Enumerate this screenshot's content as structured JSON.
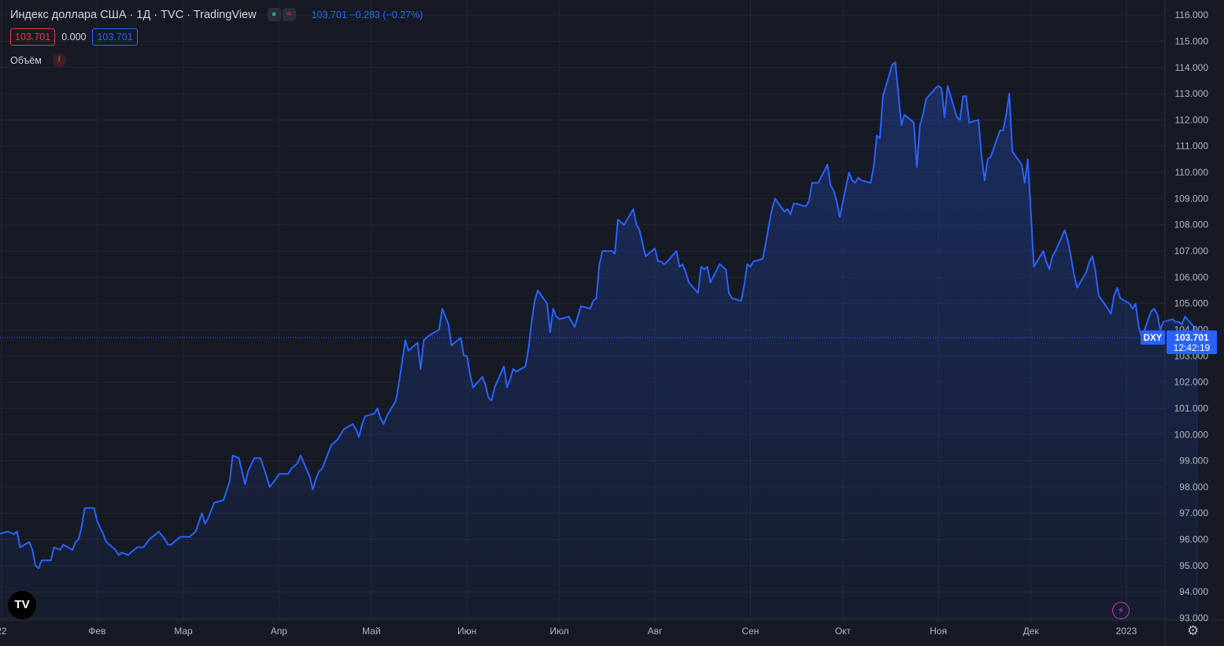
{
  "legend": {
    "title": "Индекс доллара США · 1Д · TVC · TradingView",
    "quote": "103.701  −0.283 (−0.27%)",
    "bid": "103.701",
    "spread": "0.000",
    "ask": "103.701",
    "volume_label": "Объём"
  },
  "price_tag": {
    "symbol": "DXY",
    "price": "103.701",
    "countdown": "12:42:19"
  },
  "colors": {
    "line": "#2962ff",
    "background": "#161a25",
    "grid": "#232733",
    "down": "#f23645",
    "up": "#26a69a"
  },
  "icons": {
    "logo": "tradingview-logo-icon",
    "bolt": "lightning-icon",
    "settings": "gear-icon"
  },
  "chart_data": {
    "type": "area",
    "symbol": "DXY",
    "ylim": [
      93,
      116
    ],
    "yticks": [
      93,
      94,
      95,
      96,
      97,
      98,
      99,
      100,
      101,
      102,
      103,
      104,
      105,
      106,
      107,
      108,
      109,
      110,
      111,
      112,
      113,
      114,
      115,
      116
    ],
    "ytick_labels": [
      "93.000",
      "94.000",
      "95.000",
      "96.000",
      "97.000",
      "98.000",
      "99.000",
      "100.000",
      "101.000",
      "102.000",
      "103.000",
      "104.000",
      "105.000",
      "106.000",
      "107.000",
      "108.000",
      "109.000",
      "110.000",
      "111.000",
      "112.000",
      "113.000",
      "114.000",
      "115.000",
      "116.000"
    ],
    "xticks": [
      "22",
      "Фев",
      "Мар",
      "Апр",
      "Май",
      "Июн",
      "Июл",
      "Авг",
      "Сен",
      "Окт",
      "Ноя",
      "Дек",
      "2023"
    ],
    "xtick_dates": [
      "2022-01-01",
      "2022-02-01",
      "2022-03-01",
      "2022-04-01",
      "2022-05-01",
      "2022-06-01",
      "2022-07-01",
      "2022-08-01",
      "2022-09-01",
      "2022-10-01",
      "2022-11-01",
      "2022-12-01",
      "2023-01-01"
    ],
    "last_value": 103.701,
    "points": [
      [
        "2021-12-31",
        96.2
      ],
      [
        "2022-01-03",
        96.3
      ],
      [
        "2022-01-05",
        96.2
      ],
      [
        "2022-01-06",
        96.3
      ],
      [
        "2022-01-07",
        95.7
      ],
      [
        "2022-01-10",
        95.9
      ],
      [
        "2022-01-11",
        95.6
      ],
      [
        "2022-01-12",
        95.0
      ],
      [
        "2022-01-13",
        94.9
      ],
      [
        "2022-01-14",
        95.2
      ],
      [
        "2022-01-17",
        95.2
      ],
      [
        "2022-01-18",
        95.7
      ],
      [
        "2022-01-20",
        95.6
      ],
      [
        "2022-01-21",
        95.8
      ],
      [
        "2022-01-24",
        95.6
      ],
      [
        "2022-01-25",
        95.9
      ],
      [
        "2022-01-26",
        96.0
      ],
      [
        "2022-01-27",
        96.5
      ],
      [
        "2022-01-28",
        97.2
      ],
      [
        "2022-01-31",
        97.2
      ],
      [
        "2022-02-01",
        96.7
      ],
      [
        "2022-02-03",
        96.2
      ],
      [
        "2022-02-04",
        95.9
      ],
      [
        "2022-02-07",
        95.6
      ],
      [
        "2022-02-08",
        95.4
      ],
      [
        "2022-02-09",
        95.5
      ],
      [
        "2022-02-11",
        95.4
      ],
      [
        "2022-02-14",
        95.7
      ],
      [
        "2022-02-16",
        95.7
      ],
      [
        "2022-02-18",
        96.0
      ],
      [
        "2022-02-21",
        96.3
      ],
      [
        "2022-02-23",
        96.0
      ],
      [
        "2022-02-24",
        95.8
      ],
      [
        "2022-02-25",
        95.8
      ],
      [
        "2022-02-28",
        96.1
      ],
      [
        "2022-03-01",
        96.1
      ],
      [
        "2022-03-03",
        96.1
      ],
      [
        "2022-03-04",
        96.2
      ],
      [
        "2022-03-05",
        96.3
      ],
      [
        "2022-03-07",
        97.0
      ],
      [
        "2022-03-08",
        96.6
      ],
      [
        "2022-03-09",
        96.8
      ],
      [
        "2022-03-11",
        97.4
      ],
      [
        "2022-03-14",
        97.5
      ],
      [
        "2022-03-16",
        98.2
      ],
      [
        "2022-03-17",
        99.2
      ],
      [
        "2022-03-19",
        99.1
      ],
      [
        "2022-03-21",
        98.1
      ],
      [
        "2022-03-22",
        98.6
      ],
      [
        "2022-03-24",
        99.1
      ],
      [
        "2022-03-26",
        99.1
      ],
      [
        "2022-03-28",
        98.4
      ],
      [
        "2022-03-29",
        98.0
      ],
      [
        "2022-03-31",
        98.3
      ],
      [
        "2022-04-01",
        98.5
      ],
      [
        "2022-04-04",
        98.5
      ],
      [
        "2022-04-05",
        98.7
      ],
      [
        "2022-04-06",
        98.8
      ],
      [
        "2022-04-07",
        98.9
      ],
      [
        "2022-04-08",
        99.2
      ],
      [
        "2022-04-11",
        98.4
      ],
      [
        "2022-04-12",
        97.9
      ],
      [
        "2022-04-13",
        98.3
      ],
      [
        "2022-04-14",
        98.6
      ],
      [
        "2022-04-15",
        98.7
      ],
      [
        "2022-04-18",
        99.6
      ],
      [
        "2022-04-19",
        99.7
      ],
      [
        "2022-04-20",
        99.8
      ],
      [
        "2022-04-21",
        100.0
      ],
      [
        "2022-04-22",
        100.2
      ],
      [
        "2022-04-25",
        100.4
      ],
      [
        "2022-04-26",
        100.2
      ],
      [
        "2022-04-27",
        99.9
      ],
      [
        "2022-04-28",
        100.4
      ],
      [
        "2022-04-29",
        100.7
      ],
      [
        "2022-05-02",
        100.8
      ],
      [
        "2022-05-03",
        101.0
      ],
      [
        "2022-05-04",
        100.6
      ],
      [
        "2022-05-05",
        100.4
      ],
      [
        "2022-05-06",
        100.7
      ],
      [
        "2022-05-09",
        101.3
      ],
      [
        "2022-05-10",
        102.0
      ],
      [
        "2022-05-11",
        102.8
      ],
      [
        "2022-05-12",
        103.6
      ],
      [
        "2022-05-13",
        103.2
      ],
      [
        "2022-05-16",
        103.5
      ],
      [
        "2022-05-17",
        102.5
      ],
      [
        "2022-05-18",
        103.6
      ],
      [
        "2022-05-19",
        103.7
      ],
      [
        "2022-05-20",
        103.8
      ],
      [
        "2022-05-23",
        104.0
      ],
      [
        "2022-05-24",
        104.8
      ],
      [
        "2022-05-25",
        104.5
      ],
      [
        "2022-05-26",
        104.2
      ],
      [
        "2022-05-27",
        103.4
      ],
      [
        "2022-05-30",
        103.7
      ],
      [
        "2022-05-31",
        103.0
      ],
      [
        "2022-06-01",
        103.0
      ],
      [
        "2022-06-02",
        102.3
      ],
      [
        "2022-06-03",
        101.8
      ],
      [
        "2022-06-06",
        102.2
      ],
      [
        "2022-06-07",
        101.9
      ],
      [
        "2022-06-08",
        101.4
      ],
      [
        "2022-06-09",
        101.3
      ],
      [
        "2022-06-10",
        101.8
      ],
      [
        "2022-06-13",
        102.6
      ],
      [
        "2022-06-14",
        101.8
      ],
      [
        "2022-06-15",
        102.1
      ],
      [
        "2022-06-16",
        102.5
      ],
      [
        "2022-06-17",
        102.4
      ],
      [
        "2022-06-20",
        102.6
      ],
      [
        "2022-06-21",
        103.3
      ],
      [
        "2022-06-22",
        104.3
      ],
      [
        "2022-06-23",
        105.1
      ],
      [
        "2022-06-24",
        105.5
      ],
      [
        "2022-06-27",
        105.0
      ],
      [
        "2022-06-28",
        103.9
      ],
      [
        "2022-06-29",
        104.8
      ],
      [
        "2022-06-30",
        104.5
      ],
      [
        "2022-07-01",
        104.4
      ],
      [
        "2022-07-04",
        104.5
      ],
      [
        "2022-07-05",
        104.3
      ],
      [
        "2022-07-06",
        104.1
      ],
      [
        "2022-07-07",
        104.5
      ],
      [
        "2022-07-08",
        104.9
      ],
      [
        "2022-07-11",
        104.8
      ],
      [
        "2022-07-12",
        105.1
      ],
      [
        "2022-07-13",
        105.2
      ],
      [
        "2022-07-14",
        106.5
      ],
      [
        "2022-07-15",
        107.0
      ],
      [
        "2022-07-18",
        107.0
      ],
      [
        "2022-07-19",
        106.9
      ],
      [
        "2022-07-20",
        108.2
      ],
      [
        "2022-07-21",
        108.1
      ],
      [
        "2022-07-22",
        108.0
      ],
      [
        "2022-07-25",
        108.6
      ],
      [
        "2022-07-26",
        108.0
      ],
      [
        "2022-07-27",
        107.8
      ],
      [
        "2022-07-28",
        107.3
      ],
      [
        "2022-07-29",
        106.8
      ],
      [
        "2022-08-01",
        107.1
      ],
      [
        "2022-08-02",
        106.6
      ],
      [
        "2022-08-03",
        106.6
      ],
      [
        "2022-08-04",
        106.5
      ],
      [
        "2022-08-05",
        106.6
      ],
      [
        "2022-08-08",
        107.0
      ],
      [
        "2022-08-09",
        106.4
      ],
      [
        "2022-08-10",
        106.5
      ],
      [
        "2022-08-11",
        106.2
      ],
      [
        "2022-08-12",
        105.8
      ],
      [
        "2022-08-15",
        105.4
      ],
      [
        "2022-08-16",
        106.4
      ],
      [
        "2022-08-17",
        106.3
      ],
      [
        "2022-08-18",
        106.4
      ],
      [
        "2022-08-19",
        105.8
      ],
      [
        "2022-08-22",
        106.5
      ],
      [
        "2022-08-23",
        106.4
      ],
      [
        "2022-08-24",
        106.3
      ],
      [
        "2022-08-25",
        105.4
      ],
      [
        "2022-08-26",
        105.2
      ],
      [
        "2022-08-29",
        105.1
      ],
      [
        "2022-08-30",
        105.7
      ],
      [
        "2022-08-31",
        106.5
      ],
      [
        "2022-09-01",
        106.4
      ],
      [
        "2022-09-02",
        106.6
      ],
      [
        "2022-09-05",
        106.7
      ],
      [
        "2022-09-06",
        107.3
      ],
      [
        "2022-09-07",
        108.0
      ],
      [
        "2022-09-08",
        108.6
      ],
      [
        "2022-09-09",
        109.0
      ],
      [
        "2022-09-12",
        108.5
      ],
      [
        "2022-09-13",
        108.6
      ],
      [
        "2022-09-14",
        108.4
      ],
      [
        "2022-09-15",
        108.8
      ],
      [
        "2022-09-16",
        108.8
      ],
      [
        "2022-09-19",
        108.7
      ],
      [
        "2022-09-20",
        108.9
      ],
      [
        "2022-09-21",
        109.6
      ],
      [
        "2022-09-22",
        109.6
      ],
      [
        "2022-09-23",
        109.6
      ],
      [
        "2022-09-26",
        110.3
      ],
      [
        "2022-09-27",
        109.5
      ],
      [
        "2022-09-28",
        109.3
      ],
      [
        "2022-09-29",
        108.9
      ],
      [
        "2022-09-30",
        108.3
      ],
      [
        "2022-10-03",
        110.0
      ],
      [
        "2022-10-04",
        109.7
      ],
      [
        "2022-10-05",
        109.6
      ],
      [
        "2022-10-06",
        109.8
      ],
      [
        "2022-10-07",
        109.7
      ],
      [
        "2022-10-10",
        109.6
      ],
      [
        "2022-10-11",
        110.2
      ],
      [
        "2022-10-12",
        111.4
      ],
      [
        "2022-10-13",
        111.3
      ],
      [
        "2022-10-14",
        112.9
      ],
      [
        "2022-10-17",
        114.1
      ],
      [
        "2022-10-18",
        114.2
      ],
      [
        "2022-10-19",
        113.0
      ],
      [
        "2022-10-20",
        111.8
      ],
      [
        "2022-10-21",
        112.2
      ],
      [
        "2022-10-24",
        111.9
      ],
      [
        "2022-10-25",
        110.2
      ],
      [
        "2022-10-26",
        111.8
      ],
      [
        "2022-10-27",
        112.2
      ],
      [
        "2022-10-28",
        112.8
      ],
      [
        "2022-10-31",
        113.2
      ],
      [
        "2022-11-01",
        113.3
      ],
      [
        "2022-11-02",
        113.2
      ],
      [
        "2022-11-03",
        112.1
      ],
      [
        "2022-11-04",
        113.3
      ],
      [
        "2022-11-07",
        112.1
      ],
      [
        "2022-11-08",
        112.0
      ],
      [
        "2022-11-09",
        112.9
      ],
      [
        "2022-11-10",
        112.9
      ],
      [
        "2022-11-11",
        111.9
      ],
      [
        "2022-11-14",
        112.0
      ],
      [
        "2022-11-15",
        110.6
      ],
      [
        "2022-11-16",
        109.7
      ],
      [
        "2022-11-17",
        110.5
      ],
      [
        "2022-11-18",
        110.6
      ],
      [
        "2022-11-21",
        111.6
      ],
      [
        "2022-11-22",
        111.6
      ],
      [
        "2022-11-23",
        112.2
      ],
      [
        "2022-11-24",
        113.0
      ],
      [
        "2022-11-25",
        110.8
      ],
      [
        "2022-11-28",
        110.3
      ],
      [
        "2022-11-29",
        109.6
      ],
      [
        "2022-11-30",
        110.5
      ],
      [
        "2022-12-01",
        108.5
      ],
      [
        "2022-12-02",
        106.4
      ],
      [
        "2022-12-05",
        107.0
      ],
      [
        "2022-12-06",
        106.6
      ],
      [
        "2022-12-07",
        106.3
      ],
      [
        "2022-12-08",
        106.8
      ],
      [
        "2022-12-09",
        107.0
      ],
      [
        "2022-12-12",
        107.8
      ],
      [
        "2022-12-13",
        107.4
      ],
      [
        "2022-12-14",
        106.8
      ],
      [
        "2022-12-15",
        106.1
      ],
      [
        "2022-12-16",
        105.6
      ],
      [
        "2022-12-19",
        106.2
      ],
      [
        "2022-12-20",
        106.6
      ],
      [
        "2022-12-21",
        106.8
      ],
      [
        "2022-12-22",
        106.2
      ],
      [
        "2022-12-23",
        105.3
      ],
      [
        "2022-12-26",
        104.8
      ],
      [
        "2022-12-27",
        104.6
      ],
      [
        "2022-12-28",
        105.3
      ],
      [
        "2022-12-29",
        105.6
      ],
      [
        "2022-12-30",
        105.2
      ],
      [
        "2023-01-02",
        105.0
      ],
      [
        "2023-01-03",
        104.8
      ],
      [
        "2023-01-04",
        105.0
      ],
      [
        "2023-01-05",
        104.1
      ],
      [
        "2023-01-06",
        103.7
      ],
      [
        "2023-01-09",
        104.7
      ],
      [
        "2023-01-10",
        104.8
      ],
      [
        "2023-01-11",
        104.6
      ],
      [
        "2023-01-12",
        104.0
      ],
      [
        "2023-01-13",
        104.3
      ],
      [
        "2023-01-16",
        104.4
      ],
      [
        "2023-01-17",
        104.3
      ],
      [
        "2023-01-18",
        104.3
      ],
      [
        "2023-01-19",
        104.2
      ],
      [
        "2023-01-20",
        104.5
      ],
      [
        "2023-01-23",
        104.1
      ],
      [
        "2023-01-24",
        103.7
      ]
    ]
  }
}
